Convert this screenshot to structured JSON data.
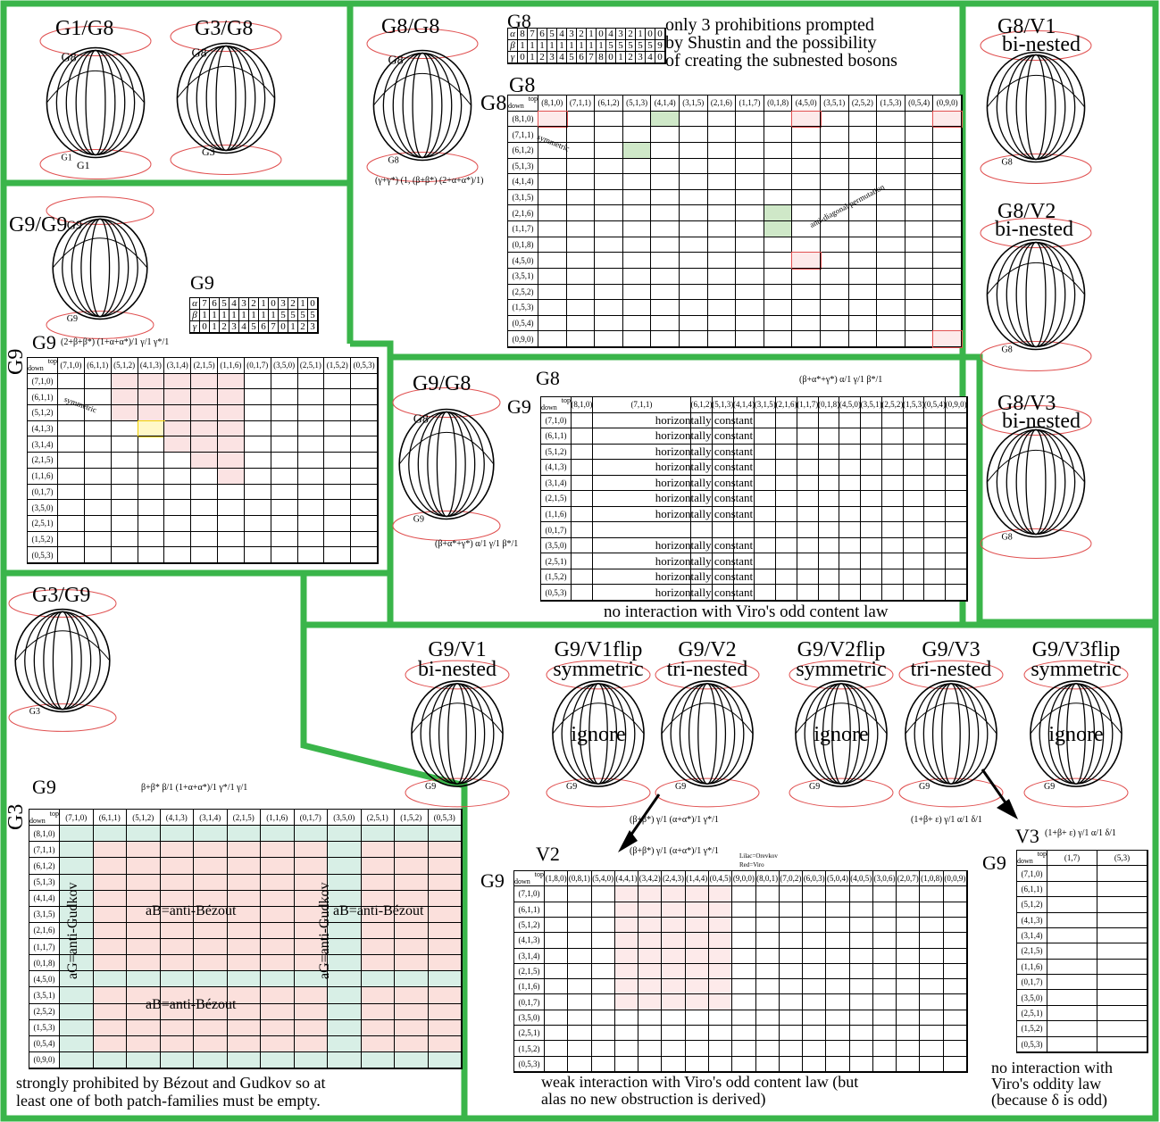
{
  "colors": {
    "frame_green": "#3ab54a",
    "oval_red": "#e05050",
    "patch_pink": "#fbe0dc",
    "patch_teal": "#d8efe6",
    "highlight_yellow": "#f0d000",
    "lilac": "#a050b0",
    "boson_green": "#cfe8c8"
  },
  "panels": {
    "g1g8": {
      "title": "G1/G8",
      "label": "G1"
    },
    "g3g8": {
      "title": "G3/G8",
      "label": "G3"
    },
    "g8g8": {
      "title": "G8/G8",
      "formula": "(γ+γ*) (1, (β+β*) (2+α+α*)/1)"
    },
    "g8_table_title": "G8",
    "g8_note": [
      "only 3 prohibitions prompted",
      "by Shustin and the possibility",
      "of creating the subnested bosons"
    ],
    "g8_main_title": "G8",
    "g8_anti_diag": "anti-diagonal permutation",
    "g8_symmetric": "symmetric",
    "g9g9": {
      "title": "G9/G9",
      "table_title": "G9",
      "formula_title": "G9",
      "formula": "(2+β+β*) (1+α+α*)/1 γ/1 γ*/1",
      "side_label": "G9",
      "symmetric": "symmetric"
    },
    "g9g8": {
      "title": "G9/G8",
      "table_title": "G8",
      "side_label": "G9",
      "formula": "(β+α*+γ*) α/1 γ/1 β*/1",
      "top_formula": "(β+α*+γ*) α/1 γ/1 β*/1",
      "constant_label": "horizontally constant",
      "note": "no interaction with Viro's odd content law"
    },
    "g3g9": {
      "title": "G3/G9",
      "table_title": "G9",
      "side_label": "G3",
      "formula": "β+β* β/1 (1+α+α*)/1 γ*/1 γ/1",
      "aG": "aG=anti-Gudkov",
      "aB": "aB=anti-Bézout",
      "note": [
        "strongly prohibited by Bézout and Gudkov so at",
        "least one of both patch-families must be empty."
      ]
    },
    "g8v1": {
      "title": "G8/V1",
      "sub": "bi-nested"
    },
    "g8v2": {
      "title": "G8/V2",
      "sub": "bi-nested"
    },
    "g8v3": {
      "title": "G8/V3",
      "sub": "bi-nested"
    },
    "g9v": [
      {
        "title": "G9/V1",
        "sub": "bi-nested",
        "ignore": ""
      },
      {
        "title": "G9/V1flip",
        "sub": "symmetric",
        "ignore": "ignore"
      },
      {
        "title": "G9/V2",
        "sub": "tri-nested",
        "ignore": ""
      },
      {
        "title": "G9/V2flip",
        "sub": "symmetric",
        "ignore": "ignore"
      },
      {
        "title": "G9/V3",
        "sub": "tri-nested",
        "ignore": ""
      },
      {
        "title": "G9/V3flip",
        "sub": "symmetric",
        "ignore": "ignore"
      }
    ],
    "v2": {
      "title": "V2",
      "side_label": "G9",
      "formula1": "(β+β*) γ/1 (α+α*)/1 γ*/1",
      "formula2": "(β+β*) γ/1 (α+α*)/1 γ*/1",
      "legend1": "Lilac=Orevkov",
      "legend2": "Red=Viro",
      "note": [
        "weak interaction with Viro's odd content law (but",
        "alas no new obstruction is derived)"
      ]
    },
    "v3": {
      "title": "V3",
      "side_label": "G9",
      "formula1": "(1+β+ ε) γ/1 α/1 δ/1",
      "formula2": "(1+β+ ε) γ/1 α/1 δ/1",
      "col1": "(1,7)",
      "col2": "(5,3)",
      "note": [
        "no interaction with",
        "Viro's oddity law",
        "(because δ is odd)"
      ]
    }
  },
  "g8_small_table": {
    "rows": [
      {
        "name": "α",
        "values": [
          "8",
          "7",
          "6",
          "5",
          "4",
          "3",
          "2",
          "1",
          "0",
          "4",
          "3",
          "2",
          "1",
          "0",
          "0"
        ]
      },
      {
        "name": "β",
        "values": [
          "1",
          "1",
          "1",
          "1",
          "1",
          "1",
          "1",
          "1",
          "1",
          "5",
          "5",
          "5",
          "5",
          "5",
          "9"
        ]
      },
      {
        "name": "γ",
        "values": [
          "0",
          "1",
          "2",
          "3",
          "4",
          "5",
          "6",
          "7",
          "8",
          "0",
          "1",
          "2",
          "3",
          "4",
          "0"
        ]
      }
    ]
  },
  "g9_small_table": {
    "rows": [
      {
        "name": "α",
        "values": [
          "7",
          "6",
          "5",
          "4",
          "3",
          "2",
          "1",
          "0",
          "3",
          "2",
          "1",
          "0"
        ]
      },
      {
        "name": "β",
        "values": [
          "1",
          "1",
          "1",
          "1",
          "1",
          "1",
          "1",
          "1",
          "5",
          "5",
          "5",
          "5"
        ]
      },
      {
        "name": "γ",
        "values": [
          "0",
          "1",
          "2",
          "3",
          "4",
          "5",
          "6",
          "7",
          "0",
          "1",
          "2",
          "3"
        ]
      }
    ]
  },
  "g8_cols": [
    "(8,1,0)",
    "(7,1,1)",
    "(6,1,2)",
    "(5,1,3)",
    "(4,1,4)",
    "(3,1,5)",
    "(2,1,6)",
    "(1,1,7)",
    "(0,1,8)",
    "(4,5,0)",
    "(3,5,1)",
    "(2,5,2)",
    "(1,5,3)",
    "(0,5,4)",
    "(0,9,0)"
  ],
  "g8_rows": [
    "(8,1,0)",
    "(7,1,1)",
    "(6,1,2)",
    "(5,1,3)",
    "(4,1,4)",
    "(3,1,5)",
    "(2,1,6)",
    "(1,1,7)",
    "(0,1,8)",
    "(4,5,0)",
    "(3,5,1)",
    "(2,5,2)",
    "(1,5,3)",
    "(0,5,4)",
    "(0,9,0)"
  ],
  "g9_cols": [
    "(7,1,0)",
    "(6,1,1)",
    "(5,1,2)",
    "(4,1,3)",
    "(3,1,4)",
    "(2,1,5)",
    "(1,1,6)",
    "(0,1,7)",
    "(3,5,0)",
    "(2,5,1)",
    "(1,5,2)",
    "(0,5,3)"
  ],
  "g9_rows": [
    "(7,1,0)",
    "(6,1,1)",
    "(5,1,2)",
    "(4,1,3)",
    "(3,1,4)",
    "(2,1,5)",
    "(1,1,6)",
    "(0,1,7)",
    "(3,5,0)",
    "(2,5,1)",
    "(1,5,2)",
    "(0,5,3)"
  ],
  "g3_rows": [
    "(8,1,0)",
    "(7,1,1)",
    "(6,1,2)",
    "(5,1,3)",
    "(4,1,4)",
    "(3,1,5)",
    "(2,1,6)",
    "(1,1,7)",
    "(0,1,8)",
    "(4,5,0)",
    "(3,5,1)",
    "(2,5,2)",
    "(1,5,3)",
    "(0,5,4)",
    "(0,9,0)"
  ],
  "v2_cols": [
    "(1,8,0)",
    "(0,8,1)",
    "(5,4,0)",
    "(4,4,1)",
    "(3,4,2)",
    "(2,4,3)",
    "(1,4,4)",
    "(0,4,5)",
    "(9,0,0)",
    "(8,0,1)",
    "(7,0,2)",
    "(6,0,3)",
    "(5,0,4)",
    "(4,0,5)",
    "(3,0,6)",
    "(2,0,7)",
    "(1,0,8)",
    "(0,0,9)"
  ],
  "v3_rows": [
    "(7,1,0)",
    "(6,1,1)",
    "(5,1,2)",
    "(4,1,3)",
    "(3,1,4)",
    "(2,1,5)",
    "(1,1,6)",
    "(0,1,7)",
    "(3,5,0)",
    "(2,5,1)",
    "(1,5,2)",
    "(0,5,3)"
  ],
  "corner": {
    "top": "top",
    "down": "down"
  }
}
